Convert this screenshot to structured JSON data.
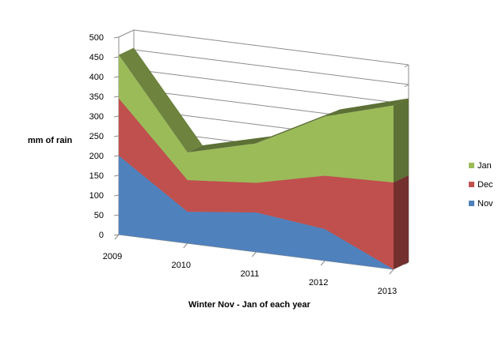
{
  "chart_data": {
    "type": "area",
    "stacked": true,
    "three_d": true,
    "title": "",
    "xlabel": "Winter Nov - Jan of each year",
    "ylabel": "mm of rain",
    "ylim": [
      0,
      500
    ],
    "yticks": [
      "0",
      "50",
      "100",
      "150",
      "200",
      "250",
      "300",
      "350",
      "400",
      "450",
      "500"
    ],
    "categories": [
      "2009",
      "2010",
      "2011",
      "2012",
      "2013"
    ],
    "series": [
      {
        "name": "Nov",
        "values": [
          200,
          80,
          100,
          80,
          0
        ],
        "color": "#4f81bd"
      },
      {
        "name": "Dec",
        "values": [
          145,
          80,
          75,
          135,
          220
        ],
        "color": "#c0504d"
      },
      {
        "name": "Jan",
        "values": [
          110,
          70,
          100,
          150,
          195
        ],
        "color": "#9bbb59"
      }
    ],
    "legend_position": "right",
    "legend_order": [
      "Jan",
      "Dec",
      "Nov"
    ],
    "grid": true
  }
}
